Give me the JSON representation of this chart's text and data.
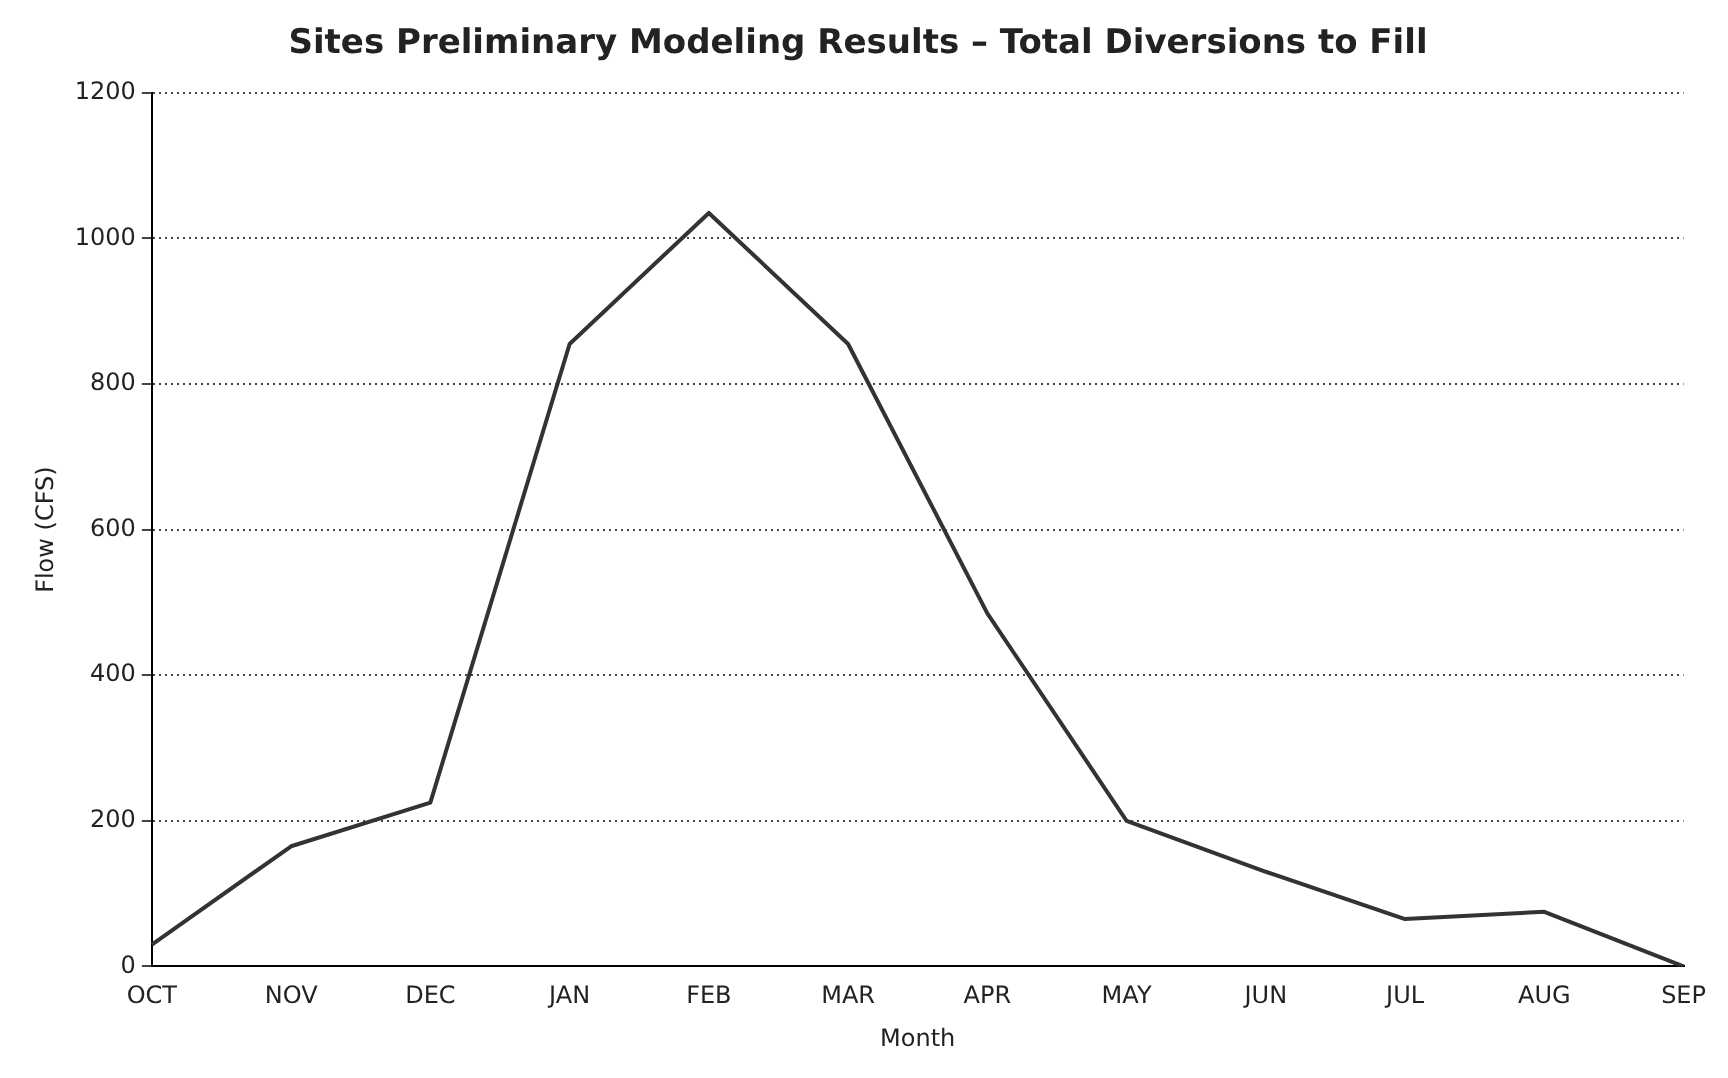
{
  "chart_data": {
    "type": "line",
    "title": "Sites Preliminary Modeling Results – Total Diversions to Fill",
    "xlabel": "Month",
    "ylabel": "Flow (CFS)",
    "categories": [
      "OCT",
      "NOV",
      "DEC",
      "JAN",
      "FEB",
      "MAR",
      "APR",
      "MAY",
      "JUN",
      "JUL",
      "AUG",
      "SEP"
    ],
    "series": [
      {
        "color": "#333333",
        "values": [
          30,
          165,
          225,
          855,
          1035,
          855,
          485,
          200,
          130,
          65,
          75,
          0
        ]
      }
    ],
    "ylim": [
      0,
      1200
    ],
    "yticks": [
      0,
      200,
      400,
      600,
      800,
      1000,
      1200
    ],
    "grid": "y",
    "legend": false,
    "marker": "none",
    "line_style": "solid"
  }
}
